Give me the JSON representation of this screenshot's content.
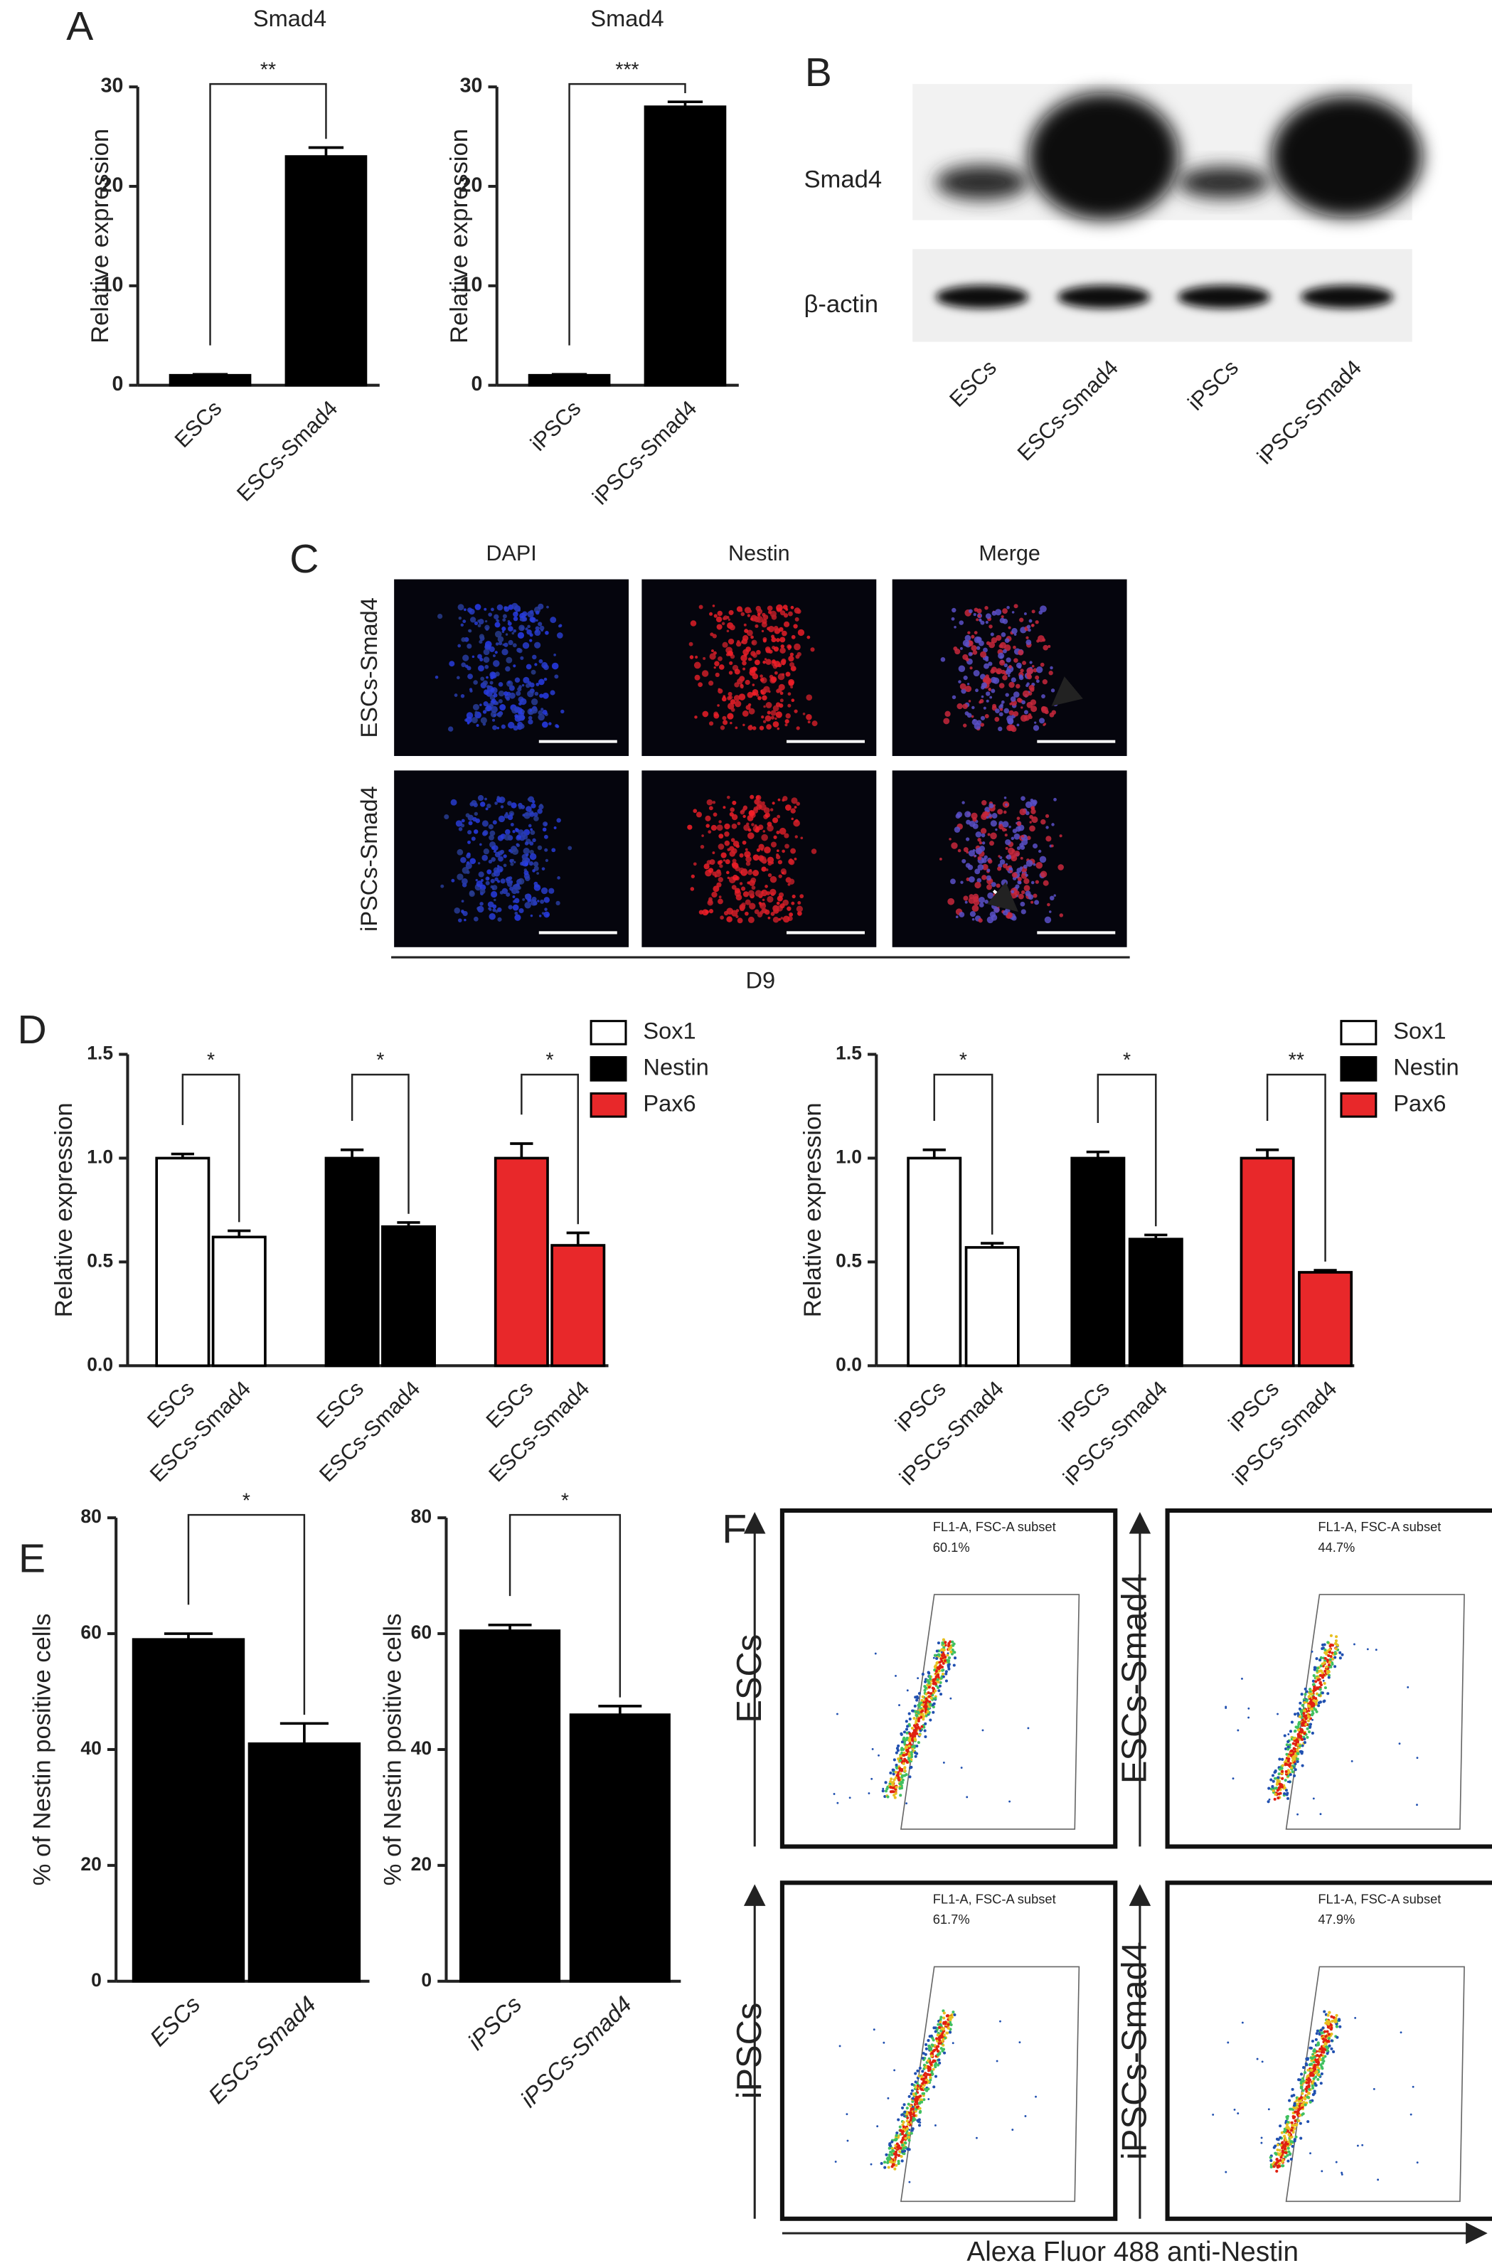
{
  "panel_labels": [
    "A",
    "B",
    "C",
    "D",
    "E",
    "F"
  ],
  "chart_data": [
    {
      "type": "bar",
      "title": "Smad4",
      "y_label": "Relative expression",
      "categories": [
        "ESCs",
        "ESCs-Smad4"
      ],
      "values": [
        1,
        23
      ],
      "errors": [
        0.1,
        0.9
      ],
      "color": "#000000",
      "ylim": [
        0,
        30
      ],
      "yticks": [
        0,
        10,
        20,
        30
      ],
      "significance": "**"
    },
    {
      "type": "bar",
      "title": "Smad4",
      "y_label": "Relative expression",
      "categories": [
        "iPSCs",
        "iPSCs-Smad4"
      ],
      "values": [
        1,
        28
      ],
      "errors": [
        0.1,
        0.5
      ],
      "color": "#000000",
      "ylim": [
        0,
        30
      ],
      "yticks": [
        0,
        10,
        20,
        30
      ],
      "significance": "***"
    },
    {
      "type": "grouped_bar",
      "y_label": "Relative expression",
      "categories": [
        "ESCs",
        "ESCs-Smad4"
      ],
      "series": [
        {
          "name": "Sox1",
          "color": "#ffffff",
          "values": [
            1.0,
            0.62
          ],
          "errors": [
            0.02,
            0.03
          ],
          "significance": "*"
        },
        {
          "name": "Nestin",
          "color": "#000000",
          "values": [
            1.0,
            0.67
          ],
          "errors": [
            0.04,
            0.02
          ],
          "significance": "*"
        },
        {
          "name": "Pax6",
          "color": "#e8282a",
          "values": [
            1.0,
            0.58
          ],
          "errors": [
            0.07,
            0.06
          ],
          "significance": "*"
        }
      ],
      "ylim": [
        0,
        1.5
      ],
      "yticks": [
        {
          "value": 0,
          "label": "0.0"
        },
        0.5,
        {
          "value": 1,
          "label": "1.0"
        },
        1.5
      ],
      "legend": "upper right"
    },
    {
      "type": "grouped_bar",
      "y_label": "Relative expression",
      "categories": [
        "iPSCs",
        "iPSCs-Smad4"
      ],
      "series": [
        {
          "name": "Sox1",
          "color": "#ffffff",
          "values": [
            1.0,
            0.57
          ],
          "errors": [
            0.04,
            0.02
          ],
          "significance": "*"
        },
        {
          "name": "Nestin",
          "color": "#000000",
          "values": [
            1.0,
            0.61
          ],
          "errors": [
            0.03,
            0.02
          ],
          "significance": "*"
        },
        {
          "name": "Pax6",
          "color": "#e8282a",
          "values": [
            1.0,
            0.45
          ],
          "errors": [
            0.04,
            0.01
          ],
          "significance": "**"
        }
      ],
      "ylim": [
        0,
        1.5
      ],
      "yticks": [
        {
          "value": 0,
          "label": "0.0"
        },
        0.5,
        {
          "value": 1,
          "label": "1.0"
        },
        1.5
      ],
      "legend": "upper right"
    },
    {
      "type": "bar",
      "y_label": "% of Nestin positive cells",
      "categories": [
        "ESCs",
        "ESCs-Smad4"
      ],
      "values": [
        59,
        41
      ],
      "errors": [
        1,
        3.5
      ],
      "color": "#000000",
      "ylim": [
        0,
        80
      ],
      "yticks": [
        0,
        20,
        40,
        60,
        80
      ],
      "significance": "*"
    },
    {
      "type": "bar",
      "y_label": "% of Nestin positive cells",
      "categories": [
        "iPSCs",
        "iPSCs-Smad4"
      ],
      "values": [
        60.5,
        46
      ],
      "errors": [
        1,
        1.5
      ],
      "color": "#000000",
      "ylim": [
        0,
        80
      ],
      "yticks": [
        0,
        20,
        40,
        60,
        80
      ],
      "significance": "*"
    }
  ],
  "blot": {
    "rows": [
      "Smad4",
      "β-actin"
    ],
    "lanes": [
      "ESCs",
      "ESCs-Smad4",
      "iPSCs",
      "iPSCs-Smad4"
    ]
  },
  "microscopy": {
    "columns": [
      "DAPI",
      "Nestin",
      "Merge"
    ],
    "rows": [
      "ESCs-Smad4",
      "iPSCs-Smad4"
    ],
    "footer": "D9"
  },
  "flow": {
    "x_label": "Alexa Fluor 488 anti-Nestin",
    "plots": [
      {
        "label": "ESCs",
        "gate": "FL1-A, FSC-A subset",
        "percent": "60.1%"
      },
      {
        "label": "ESCs-Smad4",
        "gate": "FL1-A, FSC-A subset",
        "percent": "44.7%"
      },
      {
        "label": "iPSCs",
        "gate": "FL1-A, FSC-A subset",
        "percent": "61.7%"
      },
      {
        "label": "iPSCs-Smad4",
        "gate": "FL1-A, FSC-A subset",
        "percent": "47.9%"
      }
    ]
  }
}
